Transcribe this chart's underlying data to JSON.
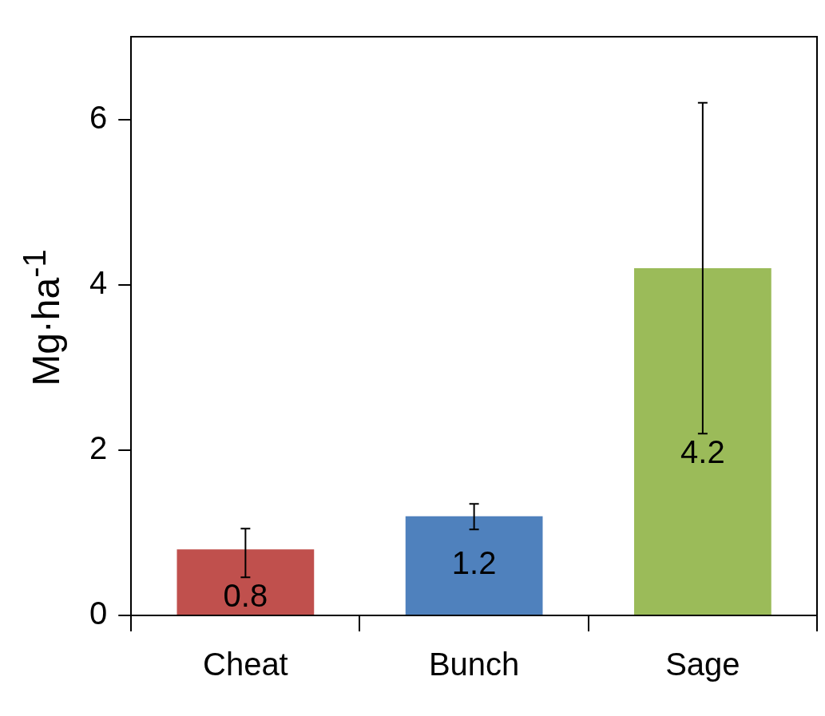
{
  "chart_data": {
    "type": "bar",
    "ylabel": "Mg·ha$^{-1}$",
    "categories": [
      "Cheat",
      "Bunch",
      "Sage"
    ],
    "values": [
      0.8,
      1.2,
      4.2
    ],
    "colors": [
      "#c0504d",
      "#4f81bd",
      "#9bbb59"
    ],
    "errors": [
      [
        0.46,
        1.05
      ],
      [
        1.04,
        1.35
      ],
      [
        2.2,
        6.2
      ]
    ],
    "ylim": [
      0,
      7
    ],
    "yticks": [
      0,
      2,
      4,
      6
    ],
    "grid": false,
    "legend": false,
    "data_labels": true
  }
}
